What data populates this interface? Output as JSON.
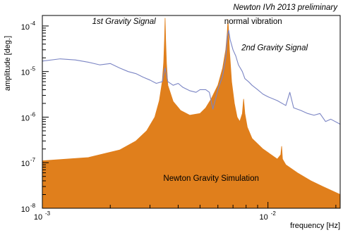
{
  "chart_data": {
    "type": "line",
    "title": "Newton IVh 2013 preliminary",
    "xlabel": "frequency [Hz]",
    "ylabel": "amplitude [deg.]",
    "x_scale": "log",
    "y_scale": "log",
    "xlim": [
      0.001,
      0.0209
    ],
    "ylim": [
      1e-08,
      0.00017
    ],
    "x_ticks": [
      {
        "base": "10",
        "exp": "-3",
        "value": 0.001
      },
      {
        "base": "10",
        "exp": "-2",
        "value": 0.01
      }
    ],
    "y_ticks": [
      {
        "base": "10",
        "exp": "-8",
        "value": 1e-08
      },
      {
        "base": "10",
        "exp": "-7",
        "value": 1e-07
      },
      {
        "base": "10",
        "exp": "-6",
        "value": 1e-06
      },
      {
        "base": "10",
        "exp": "-5",
        "value": 1e-05
      },
      {
        "base": "10",
        "exp": "-4",
        "value": 0.0001
      }
    ],
    "grid": false,
    "annotations": [
      {
        "text": "1st Gravity Signal",
        "style": "italic",
        "x": 0.0023,
        "y": 0.00011
      },
      {
        "text": "normal vibration",
        "style": "normal",
        "x": 0.0086,
        "y": 0.00011
      },
      {
        "text": "2nd Gravity Signal",
        "style": "italic",
        "x": 0.0107,
        "y": 2.9e-05
      },
      {
        "text": "Newton Gravity Simulation",
        "style": "normal",
        "x": 0.0056,
        "y": 4e-08
      }
    ],
    "series": [
      {
        "name": "Newton Gravity Simulation",
        "kind": "area",
        "color": "#e07f1c",
        "x": [
          0.001,
          0.0016,
          0.0022,
          0.0026,
          0.0029,
          0.00315,
          0.0033,
          0.0034,
          0.00345,
          0.00348,
          0.0035,
          0.00352,
          0.00355,
          0.0036,
          0.0038,
          0.0041,
          0.0045,
          0.005,
          0.0053,
          0.0056,
          0.006,
          0.0063,
          0.0065,
          0.0066,
          0.00665,
          0.0067,
          0.00675,
          0.0069,
          0.0071,
          0.0073,
          0.0075,
          0.0077,
          0.0078,
          0.0079,
          0.0081,
          0.0085,
          0.0095,
          0.011,
          0.0114,
          0.0115,
          0.0116,
          0.012,
          0.0135,
          0.0155,
          0.0175,
          0.0209
        ],
        "y": [
          1.1e-07,
          1.3e-07,
          1.9e-07,
          3e-07,
          5e-07,
          1e-06,
          2.3e-06,
          6e-06,
          1.6e-05,
          5e-05,
          0.00015,
          5e-05,
          1.5e-05,
          5e-06,
          2.2e-06,
          1.4e-06,
          1.1e-06,
          1.2e-06,
          1.6e-06,
          2.5e-06,
          5e-06,
          1.2e-05,
          3e-05,
          7e-05,
          0.00014,
          7e-05,
          3e-05,
          6e-06,
          2e-06,
          1e-06,
          8e-07,
          1.2e-06,
          2.5e-06,
          1.2e-06,
          6e-07,
          3.4e-07,
          2e-07,
          1.2e-07,
          1.5e-07,
          2.3e-07,
          1.2e-07,
          9e-08,
          6e-08,
          4e-08,
          3e-08,
          2e-08
        ]
      },
      {
        "name": "normal vibration",
        "kind": "line",
        "color": "#7b85c4",
        "x": [
          0.001,
          0.0012,
          0.0014,
          0.0016,
          0.0018,
          0.002,
          0.0022,
          0.0024,
          0.0026,
          0.0028,
          0.003,
          0.0032,
          0.0034,
          0.0035,
          0.0036,
          0.0038,
          0.004,
          0.0042,
          0.0045,
          0.0048,
          0.005,
          0.0053,
          0.0055,
          0.0057,
          0.006,
          0.0063,
          0.0065,
          0.0066,
          0.0067,
          0.0068,
          0.007,
          0.0072,
          0.0074,
          0.0077,
          0.0079,
          0.0082,
          0.0085,
          0.009,
          0.0095,
          0.01,
          0.011,
          0.012,
          0.0125,
          0.013,
          0.014,
          0.015,
          0.016,
          0.017,
          0.018,
          0.019,
          0.0209
        ],
        "y": [
          1.7e-05,
          1.9e-05,
          1.8e-05,
          1.6e-05,
          1.4e-05,
          1.5e-05,
          1.2e-05,
          1e-05,
          9e-06,
          7.5e-06,
          6.5e-06,
          5.5e-06,
          6e-06,
          1.2e-05,
          6e-06,
          5e-06,
          5.5e-06,
          4.5e-06,
          3.8e-06,
          3.5e-06,
          4e-06,
          4e-06,
          3.5e-06,
          1.5e-06,
          4e-06,
          8e-06,
          2e-05,
          6e-05,
          8e-05,
          5e-05,
          3e-05,
          2.2e-05,
          1.4e-05,
          1e-05,
          7e-06,
          6e-06,
          5e-06,
          4e-06,
          3.2e-06,
          2.8e-06,
          2.3e-06,
          1.8e-06,
          3.5e-06,
          1.6e-06,
          1.4e-06,
          1.2e-06,
          1.1e-06,
          1.2e-06,
          8e-07,
          9e-07,
          7e-07
        ]
      }
    ]
  }
}
